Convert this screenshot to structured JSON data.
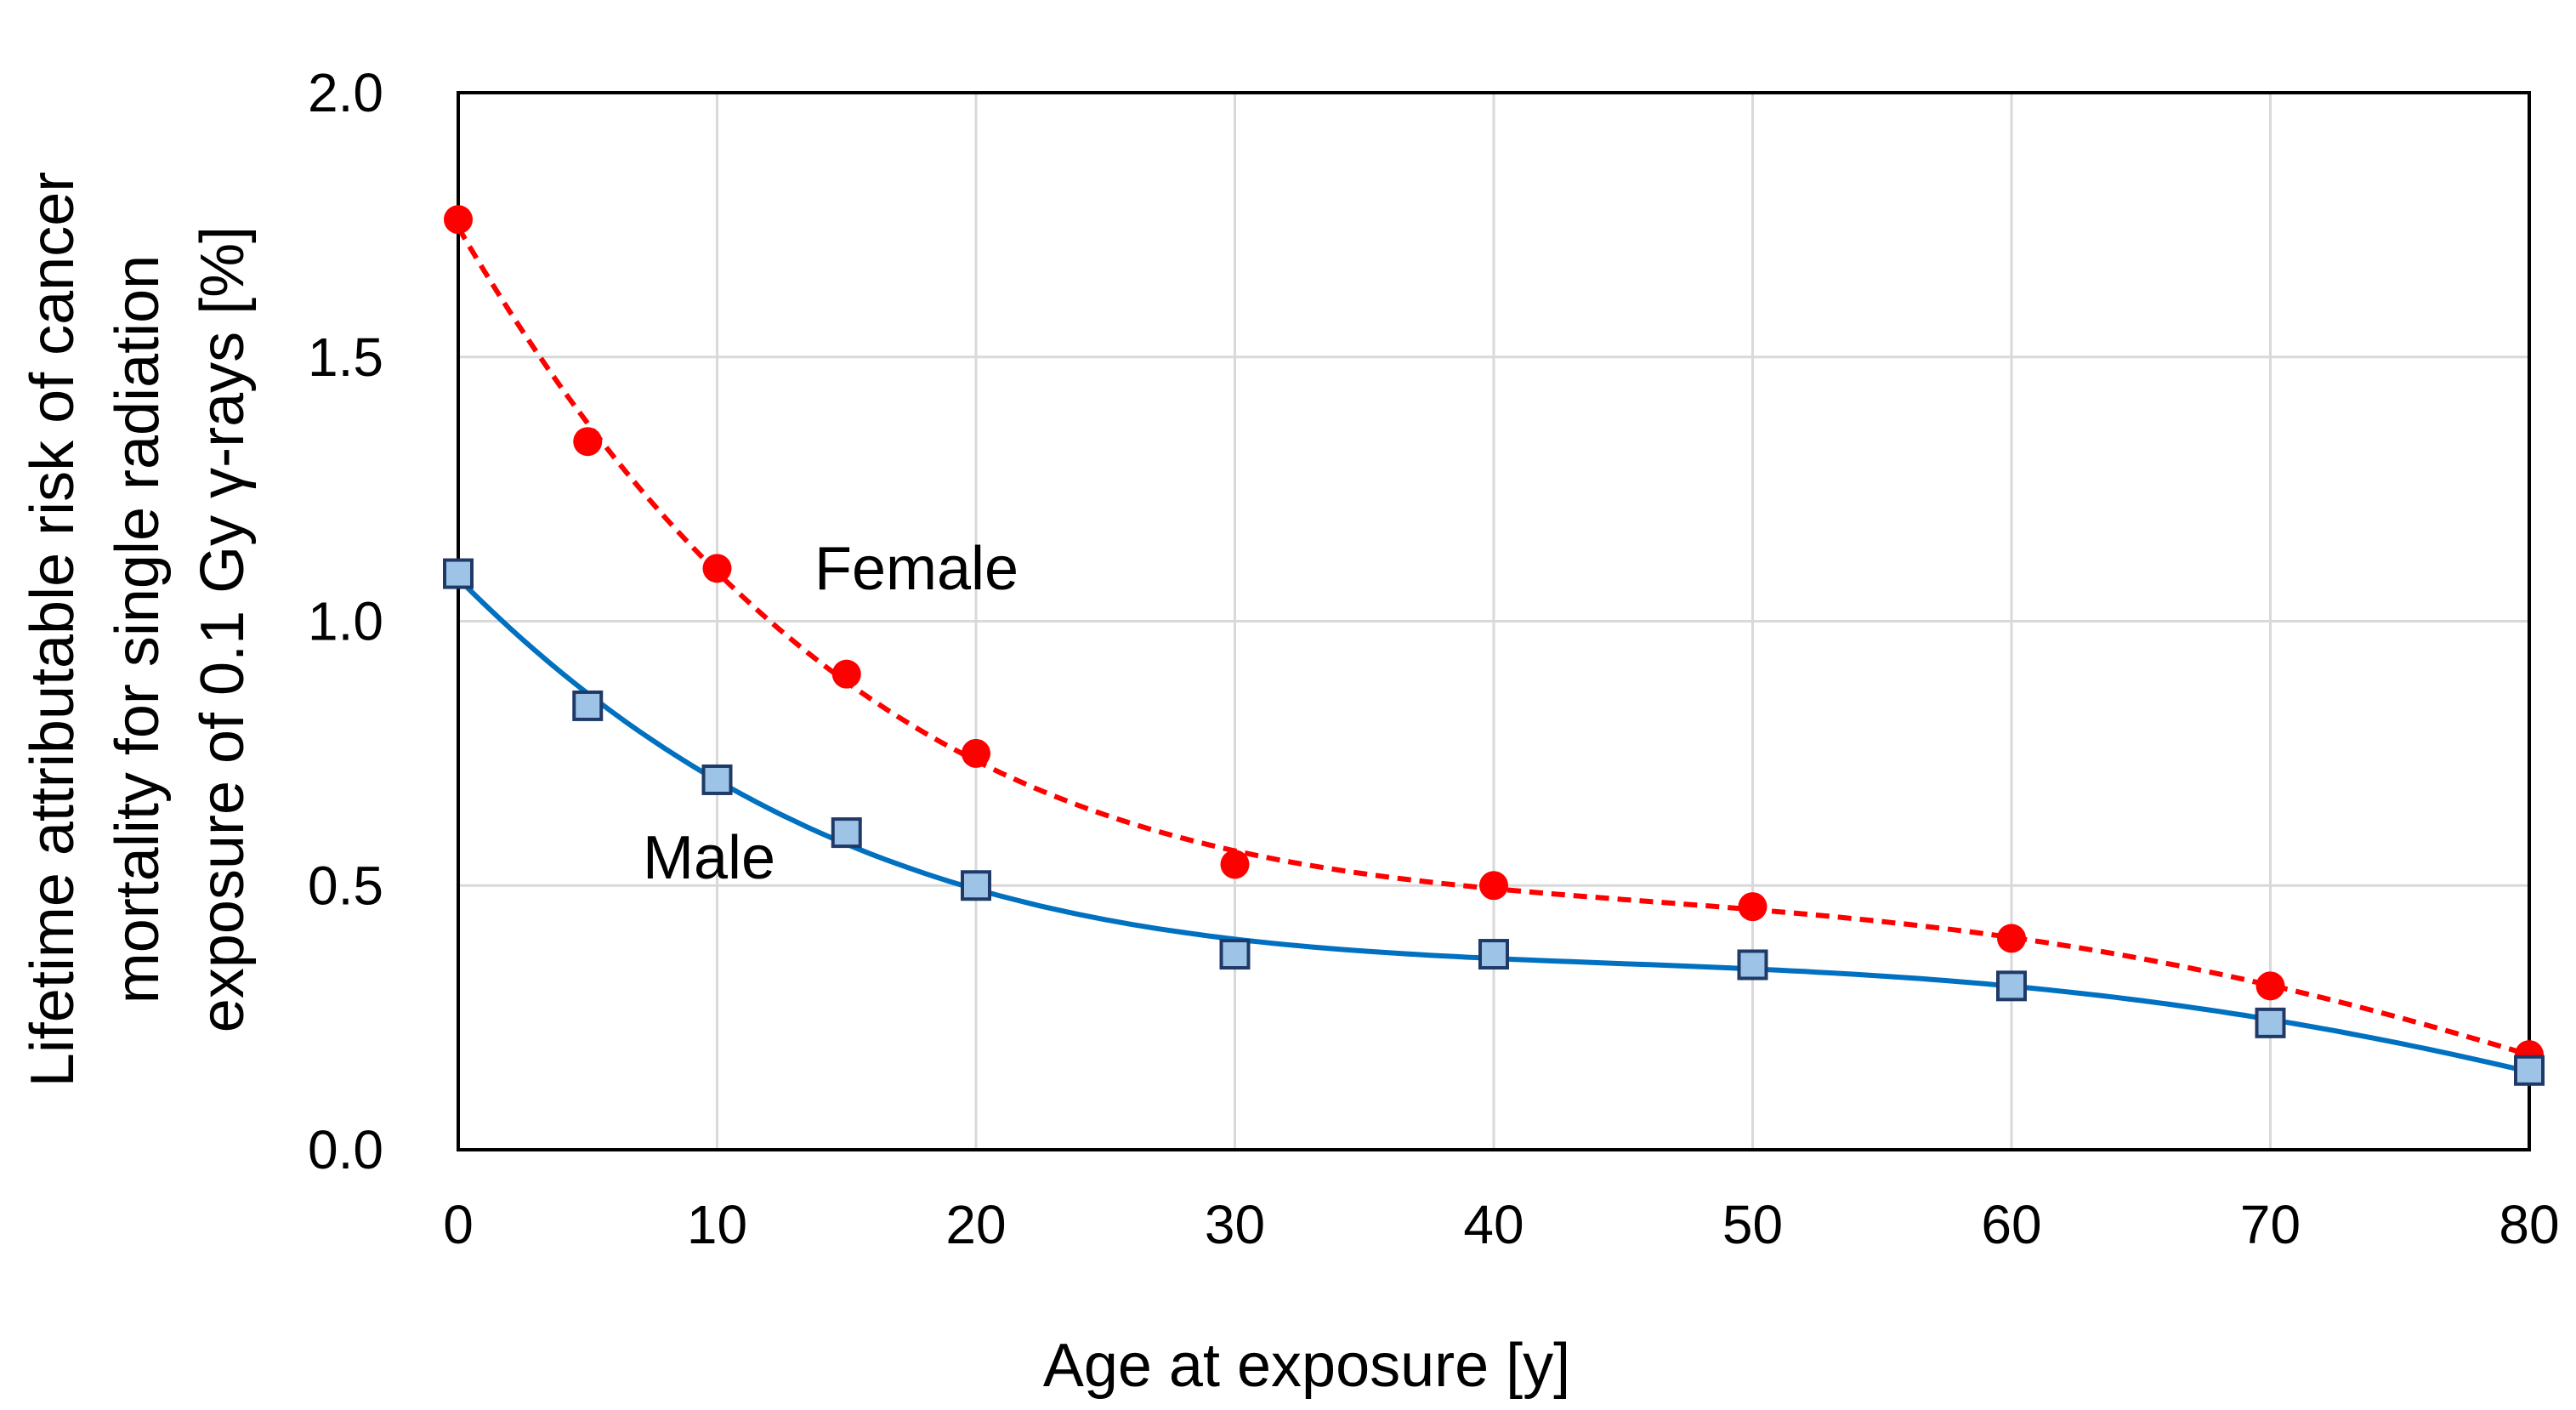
{
  "chart_data": {
    "type": "scatter",
    "title": "",
    "xlabel": "Age at  exposure [y]",
    "ylabel_lines": [
      "Lifetime attributable risk of cancer",
      "mortality for single radiation",
      "exposure of 0.1 Gy γ-rays [%]"
    ],
    "xlim": [
      0,
      80
    ],
    "ylim": [
      0,
      2.0
    ],
    "xticks": [
      0,
      10,
      20,
      30,
      40,
      50,
      60,
      70,
      80
    ],
    "yticks": [
      0.0,
      0.5,
      1.0,
      1.5,
      2.0
    ],
    "xtick_labels": [
      "0",
      "10",
      "20",
      "30",
      "40",
      "50",
      "60",
      "70",
      "80"
    ],
    "ytick_labels": [
      "0.0",
      "0.5",
      "1.0",
      "1.5",
      "2.0"
    ],
    "grid": true,
    "legend": "none (series labeled inline)",
    "series": [
      {
        "name": "Female",
        "label": "Female",
        "marker": "circle",
        "fit_line": "dashed",
        "color": "#ff0000",
        "x": [
          0,
          5,
          10,
          15,
          20,
          30,
          40,
          50,
          60,
          70,
          80
        ],
        "y": [
          1.76,
          1.34,
          1.1,
          0.9,
          0.75,
          0.54,
          0.5,
          0.46,
          0.4,
          0.31,
          0.18
        ]
      },
      {
        "name": "Male",
        "label": "Male",
        "marker": "square",
        "fit_line": "solid",
        "color": "#0070c0",
        "fill": "#9dc3e6",
        "stroke": "#1f3a68",
        "x": [
          0,
          5,
          10,
          15,
          20,
          30,
          40,
          50,
          60,
          70,
          80
        ],
        "y": [
          1.09,
          0.84,
          0.7,
          0.6,
          0.5,
          0.37,
          0.37,
          0.35,
          0.31,
          0.24,
          0.15
        ]
      }
    ]
  }
}
